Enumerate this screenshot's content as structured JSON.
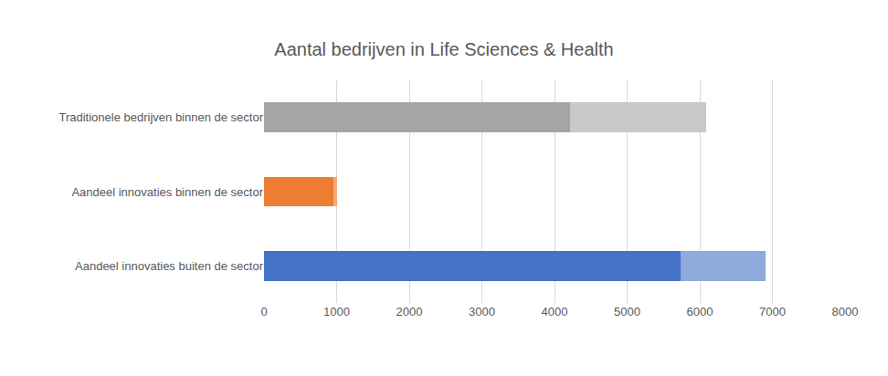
{
  "chart_data": {
    "type": "bar",
    "title": "Aantal bedrijven in Life Sciences & Health",
    "orientation": "horizontal",
    "stacked": true,
    "grid": true,
    "categories": [
      "Traditionele bedrijven binnen de sector",
      "Aandeel innovaties binnen de sector",
      "Aandeel innovaties buiten de sector"
    ],
    "series": [
      {
        "colors": [
          "#a5a5a5",
          "#ed7d31",
          "#4472c4"
        ],
        "values": [
          4210,
          960,
          5730
        ]
      },
      {
        "colors": [
          "#c9c9c9",
          "#f5a87c",
          "#8faadc"
        ],
        "values": [
          1880,
          50,
          1170
        ]
      }
    ],
    "xlim": [
      0,
      8000
    ],
    "xticks": [
      0,
      1000,
      2000,
      3000,
      4000,
      5000,
      6000,
      7000,
      8000
    ]
  }
}
